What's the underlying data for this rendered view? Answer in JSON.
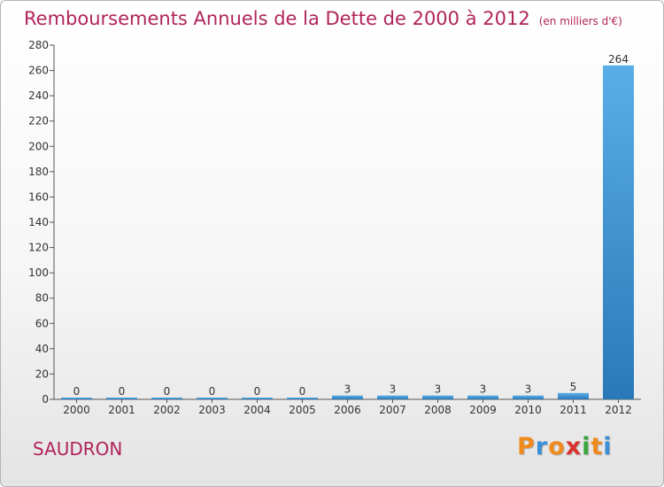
{
  "chart_data": {
    "type": "bar",
    "title": "Remboursements Annuels de la Dette de 2000 à 2012",
    "subtitle": "(en milliers d'€)",
    "categories": [
      "2000",
      "2001",
      "2002",
      "2003",
      "2004",
      "2005",
      "2006",
      "2007",
      "2008",
      "2009",
      "2010",
      "2011",
      "2012"
    ],
    "values": [
      0,
      0,
      0,
      0,
      0,
      0,
      3,
      3,
      3,
      3,
      3,
      5,
      264
    ],
    "data_labels": [
      "0",
      "0",
      "0",
      "0",
      "0",
      "0",
      "3",
      "3",
      "3",
      "3",
      "3",
      "5",
      "264"
    ],
    "xlabel": "",
    "ylabel": "",
    "ylim": [
      0,
      280
    ],
    "yticks": [
      0,
      20,
      40,
      60,
      80,
      100,
      120,
      140,
      160,
      180,
      200,
      220,
      240,
      260,
      280
    ],
    "grid": false,
    "legend": "none",
    "bar_color_top": "#5aaee8",
    "bar_color_bottom": "#2a78b8"
  },
  "footer": {
    "commune": "SAUDRON",
    "logo_letters": [
      "P",
      "r",
      "o",
      "x",
      "i",
      "t",
      "i"
    ],
    "logo_colors": [
      "#f08a1c",
      "#3a8fd6",
      "#f08a1c",
      "#d9322c",
      "#3aa63a",
      "#f08a1c",
      "#3a8fd6"
    ]
  }
}
